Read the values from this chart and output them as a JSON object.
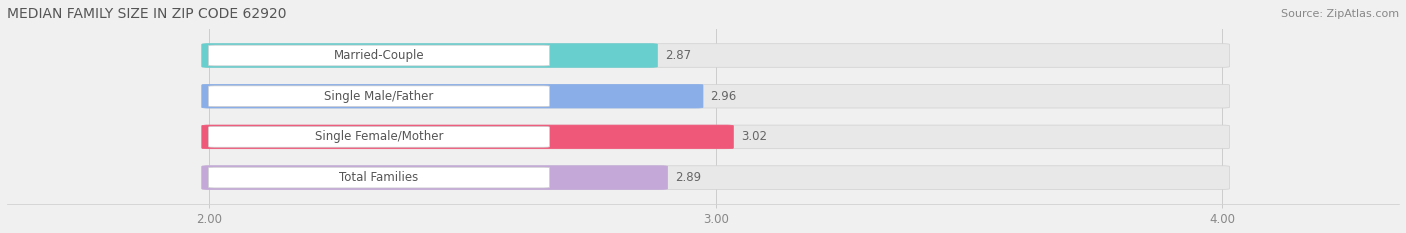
{
  "title": "MEDIAN FAMILY SIZE IN ZIP CODE 62920",
  "source": "Source: ZipAtlas.com",
  "categories": [
    "Married-Couple",
    "Single Male/Father",
    "Single Female/Mother",
    "Total Families"
  ],
  "values": [
    2.87,
    2.96,
    3.02,
    2.89
  ],
  "bar_colors": [
    "#68cece",
    "#8aaee8",
    "#f0587a",
    "#c4a8d8"
  ],
  "xlim_min": 1.6,
  "xlim_max": 4.35,
  "xmin": 2.0,
  "xmax": 4.0,
  "xticks": [
    2.0,
    3.0,
    4.0
  ],
  "xticklabels": [
    "2.00",
    "3.00",
    "4.00"
  ],
  "background_color": "#f0f0f0",
  "title_color": "#555555",
  "source_color": "#888888",
  "title_fontsize": 10,
  "source_fontsize": 8,
  "label_fontsize": 8.5,
  "value_fontsize": 8.5,
  "tick_fontsize": 8.5,
  "bar_height": 0.55,
  "bar_gap": 0.15
}
